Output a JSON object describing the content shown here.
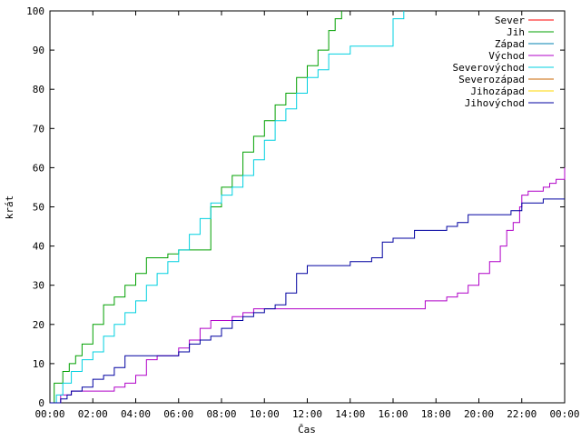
{
  "chart_data": {
    "type": "line",
    "title": "",
    "xlabel": "Čas",
    "ylabel": "krát",
    "xlim": [
      0,
      24
    ],
    "ylim": [
      0,
      100
    ],
    "x_ticks": [
      "00:00",
      "02:00",
      "04:00",
      "06:00",
      "08:00",
      "10:00",
      "12:00",
      "14:00",
      "16:00",
      "18:00",
      "20:00",
      "22:00",
      "00:00"
    ],
    "y_ticks": [
      "0",
      "10",
      "20",
      "30",
      "40",
      "50",
      "60",
      "70",
      "80",
      "90",
      "100"
    ],
    "grid": false,
    "legend_position": "top-right",
    "series": [
      {
        "name": "Sever",
        "color": "#ff0000",
        "x": [],
        "y": []
      },
      {
        "name": "Jih",
        "color": "#00a000",
        "x": [
          0,
          0.2,
          0.6,
          0.9,
          1.2,
          1.5,
          2.0,
          2.5,
          3.0,
          3.5,
          4.0,
          4.5,
          5.0,
          5.5,
          6.0,
          6.5,
          7.0,
          7.5,
          8.0,
          8.5,
          9.0,
          9.5,
          10.0,
          10.5,
          11.0,
          11.5,
          12.0,
          12.5,
          13.0,
          13.3,
          13.6
        ],
        "y": [
          0,
          5,
          8,
          10,
          12,
          15,
          20,
          25,
          27,
          30,
          33,
          37,
          37,
          38,
          39,
          39,
          39,
          50,
          55,
          58,
          64,
          68,
          72,
          76,
          79,
          83,
          86,
          90,
          95,
          98,
          100
        ]
      },
      {
        "name": "Západ",
        "color": "#0080b0",
        "x": [],
        "y": []
      },
      {
        "name": "Východ",
        "color": "#b000c8",
        "x": [
          0,
          0.5,
          1.0,
          1.5,
          2.0,
          2.5,
          3.0,
          3.5,
          4.0,
          4.5,
          5.0,
          5.5,
          6.0,
          6.5,
          7.0,
          7.5,
          8.0,
          8.5,
          9.0,
          9.5,
          10.0,
          11.0,
          12.0,
          13.0,
          14.0,
          15.0,
          16.0,
          17.0,
          17.5,
          18.0,
          18.5,
          19.0,
          19.5,
          20.0,
          20.5,
          21.0,
          21.3,
          21.6,
          21.9,
          22.0,
          22.3,
          22.6,
          23.0,
          23.3,
          23.6,
          24.0
        ],
        "y": [
          0,
          2,
          3,
          3,
          3,
          3,
          4,
          5,
          7,
          11,
          12,
          12,
          14,
          16,
          19,
          21,
          21,
          22,
          23,
          24,
          24,
          24,
          24,
          24,
          24,
          24,
          24,
          24,
          26,
          26,
          27,
          28,
          30,
          33,
          36,
          40,
          44,
          46,
          50,
          53,
          54,
          54,
          55,
          56,
          57,
          60
        ]
      },
      {
        "name": "Severovýchod",
        "color": "#00d0e0",
        "x": [
          0,
          0.3,
          0.6,
          1.0,
          1.5,
          2.0,
          2.5,
          3.0,
          3.5,
          4.0,
          4.5,
          5.0,
          5.5,
          6.0,
          6.5,
          7.0,
          7.5,
          8.0,
          8.5,
          9.0,
          9.5,
          10.0,
          10.5,
          11.0,
          11.5,
          12.0,
          12.5,
          13.0,
          14.0,
          15.0,
          16.0,
          16.5
        ],
        "y": [
          0,
          2,
          5,
          8,
          11,
          13,
          17,
          20,
          23,
          26,
          30,
          33,
          36,
          39,
          43,
          47,
          51,
          53,
          55,
          58,
          62,
          67,
          72,
          75,
          79,
          83,
          85,
          89,
          91,
          91,
          98,
          100
        ]
      },
      {
        "name": "Severozápad",
        "color": "#c86400",
        "x": [],
        "y": []
      },
      {
        "name": "Jihozápad",
        "color": "#ffd700",
        "x": [],
        "y": []
      },
      {
        "name": "Jihovýchod",
        "color": "#0000a0",
        "x": [
          0,
          0.5,
          0.8,
          1.0,
          1.5,
          2.0,
          2.5,
          3.0,
          3.5,
          4.0,
          4.5,
          5.0,
          5.5,
          6.0,
          6.5,
          7.0,
          7.5,
          8.0,
          8.5,
          9.0,
          9.5,
          10.0,
          10.5,
          11.0,
          11.5,
          12.0,
          12.5,
          13.0,
          14.0,
          15.0,
          15.5,
          16.0,
          16.5,
          17.0,
          17.5,
          18.0,
          18.5,
          19.0,
          19.5,
          20.0,
          21.0,
          21.5,
          22.0,
          22.5,
          23.0,
          24.0
        ],
        "y": [
          0,
          1,
          2,
          3,
          4,
          6,
          7,
          9,
          12,
          12,
          12,
          12,
          12,
          13,
          15,
          16,
          17,
          19,
          21,
          22,
          23,
          24,
          25,
          28,
          33,
          35,
          35,
          35,
          36,
          37,
          41,
          42,
          42,
          44,
          44,
          44,
          45,
          46,
          48,
          48,
          48,
          49,
          51,
          51,
          52,
          52
        ]
      }
    ]
  }
}
